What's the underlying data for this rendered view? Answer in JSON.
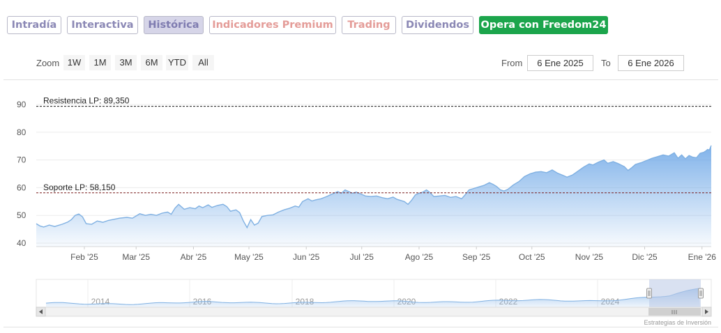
{
  "tabs": [
    {
      "label": "Intradía",
      "style": "purple"
    },
    {
      "label": "Interactiva",
      "style": "purple"
    },
    {
      "label": "Histórica",
      "style": "active"
    },
    {
      "label": "Indicadores Premium",
      "style": "pink"
    },
    {
      "label": "Trading",
      "style": "pink"
    },
    {
      "label": "Dividendos",
      "style": "purple"
    },
    {
      "label": "Opera con Freedom24",
      "style": "cta"
    }
  ],
  "range_selector": {
    "zoom_label": "Zoom",
    "buttons": [
      "1W",
      "1M",
      "3M",
      "6M",
      "YTD",
      "All"
    ],
    "from_label": "From",
    "from_value": "6 Ene 2025",
    "to_label": "To",
    "to_value": "6 Ene 2026"
  },
  "colors": {
    "line": "#7fb0e2",
    "area_top": "#6aa5e6",
    "resistance": "#1a1a1a",
    "support": "#7a1f1f",
    "navigator_mask": "#b9c8e6"
  },
  "chart_data": {
    "type": "area",
    "ylim": [
      40,
      90
    ],
    "yticks": [
      40,
      50,
      60,
      70,
      80,
      90
    ],
    "xrange": [
      "2025-01-06",
      "2026-01-06"
    ],
    "xticks": [
      {
        "date": "2025-02-01",
        "label": "Feb '25"
      },
      {
        "date": "2025-03-01",
        "label": "Mar '25"
      },
      {
        "date": "2025-04-01",
        "label": "Abr '25"
      },
      {
        "date": "2025-05-01",
        "label": "May '25"
      },
      {
        "date": "2025-06-01",
        "label": "Jun '25"
      },
      {
        "date": "2025-07-01",
        "label": "Jul '25"
      },
      {
        "date": "2025-08-01",
        "label": "Ago '25"
      },
      {
        "date": "2025-09-01",
        "label": "Sep '25"
      },
      {
        "date": "2025-10-01",
        "label": "Oct '25"
      },
      {
        "date": "2025-11-01",
        "label": "Nov '25"
      },
      {
        "date": "2025-12-01",
        "label": "Dic '25"
      },
      {
        "date": "2026-01-01",
        "label": "Ene '26"
      }
    ],
    "points": [
      [
        "2025-01-06",
        47.0
      ],
      [
        "2025-01-08",
        46.2
      ],
      [
        "2025-01-10",
        45.8
      ],
      [
        "2025-01-13",
        46.5
      ],
      [
        "2025-01-16",
        46.0
      ],
      [
        "2025-01-20",
        46.8
      ],
      [
        "2025-01-23",
        47.6
      ],
      [
        "2025-01-25",
        48.5
      ],
      [
        "2025-01-27",
        50.0
      ],
      [
        "2025-01-29",
        50.5
      ],
      [
        "2025-01-31",
        49.5
      ],
      [
        "2025-02-02",
        47.0
      ],
      [
        "2025-02-05",
        46.8
      ],
      [
        "2025-02-08",
        48.0
      ],
      [
        "2025-02-11",
        47.5
      ],
      [
        "2025-02-14",
        48.2
      ],
      [
        "2025-02-17",
        48.6
      ],
      [
        "2025-02-20",
        49.0
      ],
      [
        "2025-02-24",
        49.3
      ],
      [
        "2025-02-27",
        49.0
      ],
      [
        "2025-03-01",
        49.8
      ],
      [
        "2025-03-03",
        50.6
      ],
      [
        "2025-03-06",
        50.0
      ],
      [
        "2025-03-09",
        50.4
      ],
      [
        "2025-03-12",
        50.0
      ],
      [
        "2025-03-15",
        50.8
      ],
      [
        "2025-03-18",
        51.2
      ],
      [
        "2025-03-20",
        50.4
      ],
      [
        "2025-03-22",
        52.6
      ],
      [
        "2025-03-24",
        54.0
      ],
      [
        "2025-03-27",
        52.2
      ],
      [
        "2025-03-30",
        52.8
      ],
      [
        "2025-04-02",
        52.4
      ],
      [
        "2025-04-04",
        53.4
      ],
      [
        "2025-04-06",
        52.8
      ],
      [
        "2025-04-09",
        53.8
      ],
      [
        "2025-04-11",
        52.9
      ],
      [
        "2025-04-14",
        53.6
      ],
      [
        "2025-04-17",
        54.0
      ],
      [
        "2025-04-19",
        53.2
      ],
      [
        "2025-04-21",
        51.5
      ],
      [
        "2025-04-24",
        52.0
      ],
      [
        "2025-04-26",
        51.0
      ],
      [
        "2025-04-28",
        48.0
      ],
      [
        "2025-04-30",
        45.6
      ],
      [
        "2025-05-02",
        48.5
      ],
      [
        "2025-05-04",
        46.5
      ],
      [
        "2025-05-06",
        47.2
      ],
      [
        "2025-05-08",
        49.6
      ],
      [
        "2025-05-11",
        50.0
      ],
      [
        "2025-05-14",
        50.2
      ],
      [
        "2025-05-17",
        51.2
      ],
      [
        "2025-05-20",
        52.0
      ],
      [
        "2025-05-23",
        52.6
      ],
      [
        "2025-05-26",
        53.4
      ],
      [
        "2025-05-28",
        53.0
      ],
      [
        "2025-05-30",
        55.0
      ],
      [
        "2025-06-02",
        56.0
      ],
      [
        "2025-06-04",
        55.2
      ],
      [
        "2025-06-06",
        55.6
      ],
      [
        "2025-06-09",
        56.0
      ],
      [
        "2025-06-12",
        56.8
      ],
      [
        "2025-06-14",
        57.4
      ],
      [
        "2025-06-16",
        58.0
      ],
      [
        "2025-06-18",
        58.6
      ],
      [
        "2025-06-20",
        58.0
      ],
      [
        "2025-06-22",
        59.2
      ],
      [
        "2025-06-24",
        58.6
      ],
      [
        "2025-06-26",
        58.0
      ],
      [
        "2025-06-28",
        58.4
      ],
      [
        "2025-07-01",
        57.6
      ],
      [
        "2025-07-03",
        57.0
      ],
      [
        "2025-07-06",
        56.8
      ],
      [
        "2025-07-09",
        57.0
      ],
      [
        "2025-07-12",
        56.4
      ],
      [
        "2025-07-15",
        56.0
      ],
      [
        "2025-07-18",
        56.6
      ],
      [
        "2025-07-20",
        55.8
      ],
      [
        "2025-07-22",
        55.4
      ],
      [
        "2025-07-24",
        55.0
      ],
      [
        "2025-07-26",
        54.0
      ],
      [
        "2025-07-28",
        55.5
      ],
      [
        "2025-07-30",
        57.4
      ],
      [
        "2025-08-01",
        58.0
      ],
      [
        "2025-08-03",
        58.4
      ],
      [
        "2025-08-05",
        59.2
      ],
      [
        "2025-08-07",
        58.2
      ],
      [
        "2025-08-09",
        56.8
      ],
      [
        "2025-08-12",
        57.0
      ],
      [
        "2025-08-15",
        57.2
      ],
      [
        "2025-08-18",
        56.5
      ],
      [
        "2025-08-21",
        56.8
      ],
      [
        "2025-08-24",
        56.0
      ],
      [
        "2025-08-26",
        57.5
      ],
      [
        "2025-08-28",
        59.2
      ],
      [
        "2025-08-30",
        59.6
      ],
      [
        "2025-09-02",
        60.2
      ],
      [
        "2025-09-05",
        60.8
      ],
      [
        "2025-09-08",
        61.8
      ],
      [
        "2025-09-10",
        61.2
      ],
      [
        "2025-09-12",
        60.4
      ],
      [
        "2025-09-14",
        59.2
      ],
      [
        "2025-09-16",
        58.8
      ],
      [
        "2025-09-18",
        59.4
      ],
      [
        "2025-09-21",
        61.0
      ],
      [
        "2025-09-24",
        62.2
      ],
      [
        "2025-09-27",
        64.0
      ],
      [
        "2025-09-30",
        65.0
      ],
      [
        "2025-10-03",
        65.6
      ],
      [
        "2025-10-06",
        65.8
      ],
      [
        "2025-10-09",
        65.4
      ],
      [
        "2025-10-12",
        66.4
      ],
      [
        "2025-10-15",
        65.2
      ],
      [
        "2025-10-18",
        64.4
      ],
      [
        "2025-10-20",
        63.8
      ],
      [
        "2025-10-23",
        64.6
      ],
      [
        "2025-10-26",
        66.0
      ],
      [
        "2025-10-29",
        67.4
      ],
      [
        "2025-11-01",
        68.6
      ],
      [
        "2025-11-03",
        68.2
      ],
      [
        "2025-11-06",
        69.2
      ],
      [
        "2025-11-09",
        70.0
      ],
      [
        "2025-11-11",
        68.8
      ],
      [
        "2025-11-14",
        69.4
      ],
      [
        "2025-11-17",
        68.6
      ],
      [
        "2025-11-20",
        67.6
      ],
      [
        "2025-11-22",
        66.2
      ],
      [
        "2025-11-24",
        67.2
      ],
      [
        "2025-11-26",
        68.4
      ],
      [
        "2025-11-29",
        69.0
      ],
      [
        "2025-12-02",
        69.8
      ],
      [
        "2025-12-05",
        70.6
      ],
      [
        "2025-12-08",
        71.2
      ],
      [
        "2025-12-11",
        71.8
      ],
      [
        "2025-12-14",
        71.4
      ],
      [
        "2025-12-17",
        72.6
      ],
      [
        "2025-12-19",
        70.6
      ],
      [
        "2025-12-21",
        71.8
      ],
      [
        "2025-12-23",
        70.4
      ],
      [
        "2025-12-25",
        71.6
      ],
      [
        "2025-12-27",
        71.0
      ],
      [
        "2025-12-29",
        70.8
      ],
      [
        "2025-12-31",
        72.4
      ],
      [
        "2026-01-02",
        72.8
      ],
      [
        "2026-01-03",
        73.2
      ],
      [
        "2026-01-04",
        73.8
      ],
      [
        "2026-01-05",
        73.6
      ],
      [
        "2026-01-06",
        75.2
      ]
    ],
    "levels": [
      {
        "name": "resistance",
        "label": "Resistencia LP: 89,350",
        "value": 89.35
      },
      {
        "name": "support",
        "label": "Soporte LP: 58,150",
        "value": 58.15
      }
    ],
    "navigator": {
      "years": [
        "2014",
        "2016",
        "2018",
        "2020",
        "2022",
        "2024"
      ]
    }
  },
  "credit": "Estrategias de Inversión"
}
